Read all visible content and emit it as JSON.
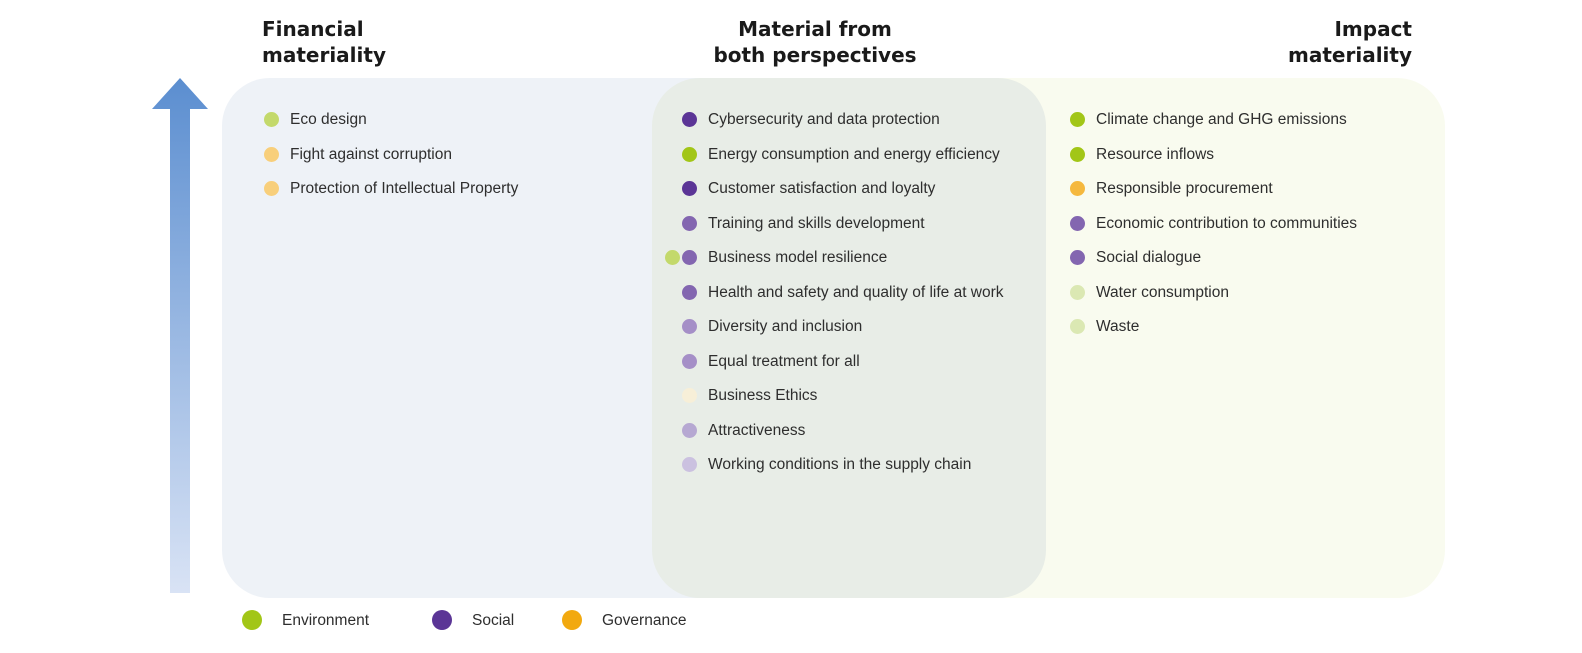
{
  "headings": {
    "financial": [
      "Financial",
      "materiality"
    ],
    "both": [
      "Material from",
      "both perspectives"
    ],
    "impact": [
      "Impact",
      "materiality"
    ]
  },
  "colors": {
    "environment": "#a2c617",
    "social": "#5b3596",
    "governance": "#f2a90f",
    "arrow_top": "#5b8ed0",
    "arrow_bottom": "#d9e3f5"
  },
  "financial_items": [
    {
      "label": "Eco design",
      "color": "#c3d96b"
    },
    {
      "label": "Fight against corruption",
      "color": "#f8cf7b"
    },
    {
      "label": "Protection of Intellectual Property",
      "color": "#f8cf7b"
    }
  ],
  "both_items": [
    {
      "label": "Cybersecurity and data protection",
      "color": "#5b3596"
    },
    {
      "label": "Energy consumption and energy efficiency",
      "color": "#a2c617"
    },
    {
      "label": "Customer satisfaction and loyalty",
      "color": "#5b3596"
    },
    {
      "label": "Training and skills development",
      "color": "#8366b0"
    },
    {
      "label": "Business model resilience",
      "color": "#8366b0",
      "extra_color": "#c3d96b"
    },
    {
      "label": "Health and safety and quality of life at work",
      "color": "#8366b0"
    },
    {
      "label": "Diversity and  inclusion",
      "color": "#a58fc7"
    },
    {
      "label": "Equal treatment for all",
      "color": "#a58fc7"
    },
    {
      "label": "Business Ethics",
      "color": "#f7efd8"
    },
    {
      "label": "Attractiveness",
      "color": "#b6a8d2"
    },
    {
      "label": "Working conditions in the supply chain",
      "color": "#cbc1e0"
    }
  ],
  "impact_items": [
    {
      "label": "Climate change and GHG emissions",
      "color": "#a2c617"
    },
    {
      "label": "Resource inflows",
      "color": "#a2c617"
    },
    {
      "label": "Responsible procurement",
      "color": "#f5b83e"
    },
    {
      "label": "Economic contribution to  communities",
      "color": "#8366b0"
    },
    {
      "label": "Social dialogue",
      "color": "#8366b0"
    },
    {
      "label": "Water consumption",
      "color": "#dbe8b3"
    },
    {
      "label": "Waste",
      "color": "#dbe8b3"
    }
  ],
  "legend": [
    {
      "label": "Environment",
      "color": "#a2c617"
    },
    {
      "label": "Social",
      "color": "#5b3596"
    },
    {
      "label": "Governance",
      "color": "#f2a90f"
    }
  ]
}
